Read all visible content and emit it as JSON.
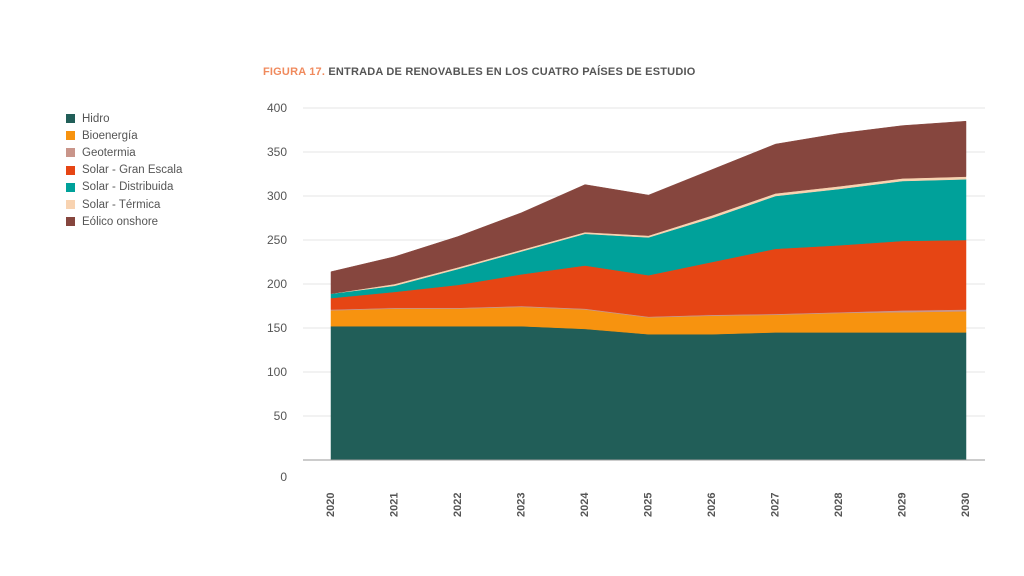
{
  "figure": {
    "prefix": "FIGURA 17.",
    "title": " ENTRADA DE RENOVABLES EN LOS CUATRO PAÍSES DE ESTUDIO"
  },
  "chart_data": {
    "type": "area",
    "stacked": true,
    "x": [
      "2020",
      "2021",
      "2022",
      "2023",
      "2024",
      "2025",
      "2026",
      "2027",
      "2028",
      "2029",
      "2030"
    ],
    "ylim": [
      0,
      400
    ],
    "yticks": [
      400,
      350,
      300,
      250,
      200,
      150,
      100,
      50,
      0
    ],
    "grid": true,
    "legend_position": "left",
    "series": [
      {
        "name": "Hidro",
        "color": "#215e58",
        "values": [
          152,
          152,
          152,
          152,
          149,
          143,
          143,
          145,
          145,
          145,
          145
        ]
      },
      {
        "name": "Bioenergía",
        "color": "#f7930f",
        "values": [
          18,
          20,
          20,
          22,
          22,
          19,
          21,
          20,
          22,
          23,
          24
        ]
      },
      {
        "name": "Geotermia",
        "color": "#c9958a",
        "values": [
          1,
          1,
          1,
          1,
          1,
          1,
          1,
          1,
          1,
          2,
          2
        ]
      },
      {
        "name": "Solar - Gran Escala",
        "color": "#e64514",
        "values": [
          13,
          18,
          26,
          36,
          49,
          47,
          60,
          74,
          76,
          79,
          79
        ]
      },
      {
        "name": "Solar - Distribuida",
        "color": "#00a19a",
        "values": [
          5,
          7,
          18,
          26,
          36,
          43,
          50,
          60,
          64,
          68,
          69
        ]
      },
      {
        "name": "Solar - Térmica",
        "color": "#f8d3b1",
        "values": [
          0,
          2,
          2,
          2,
          2,
          2,
          3,
          3,
          3,
          3,
          3
        ]
      },
      {
        "name": "Eólico onshore",
        "color": "#86463e",
        "values": [
          25,
          31,
          35,
          42,
          54,
          46,
          52,
          56,
          60,
          60,
          63
        ]
      }
    ]
  }
}
